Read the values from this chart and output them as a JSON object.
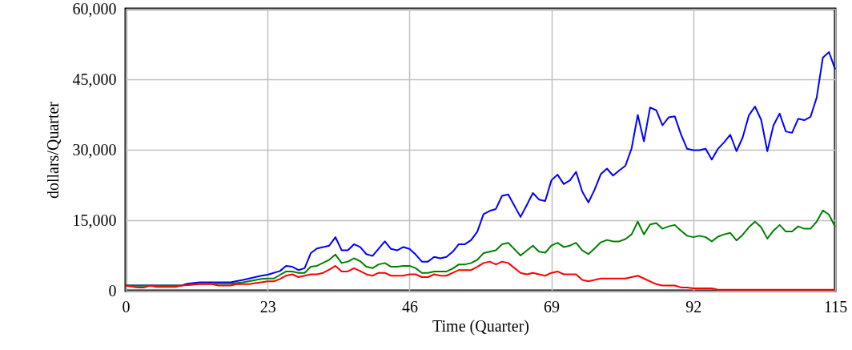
{
  "chart_data": {
    "type": "line",
    "xlabel": "Time (Quarter)",
    "ylabel": "dollars/Quarter",
    "xlim": [
      0,
      115
    ],
    "xticks": [
      0,
      23,
      46,
      69,
      92,
      115
    ],
    "ylim": [
      0,
      60000
    ],
    "yticks": [
      0,
      {
        "value": 15000,
        "label": "15,000"
      },
      {
        "value": 30000,
        "label": "30,000"
      },
      {
        "value": 45000,
        "label": "45,000"
      },
      {
        "value": 60000,
        "label": "60,000"
      }
    ],
    "grid": true,
    "series": [
      {
        "color": "#0000ff",
        "x": [
          0,
          9,
          10,
          12,
          17,
          19,
          22,
          23,
          25,
          26,
          27,
          28,
          29,
          30,
          31,
          33,
          34,
          35,
          36,
          37,
          38,
          39,
          40,
          42,
          43,
          44,
          45,
          46,
          47,
          48,
          49,
          50,
          51,
          52,
          53,
          54,
          55,
          56,
          57,
          58,
          59,
          60,
          61,
          62,
          64,
          65,
          66,
          67,
          68,
          69,
          70,
          71,
          72,
          73,
          74,
          75,
          76,
          77,
          78,
          79,
          80,
          81,
          82,
          83,
          84,
          85,
          86,
          87,
          88,
          89,
          90,
          91,
          92,
          93,
          94,
          95,
          96,
          97,
          98,
          99,
          100,
          101,
          102,
          103,
          104,
          105,
          106,
          107,
          108,
          109,
          110,
          111,
          112,
          113,
          114,
          115
        ],
        "values": [
          1100,
          1100,
          1500,
          1800,
          1800,
          2300,
          3200,
          3400,
          4200,
          5300,
          5100,
          4400,
          4800,
          8000,
          9000,
          9600,
          11400,
          8600,
          8600,
          9900,
          9300,
          7800,
          7400,
          10500,
          8900,
          8600,
          9300,
          8900,
          7700,
          6200,
          6200,
          7200,
          6900,
          7200,
          8300,
          9900,
          9900,
          10800,
          12600,
          16300,
          17000,
          17400,
          20200,
          20500,
          15700,
          18200,
          20800,
          19400,
          19100,
          23500,
          24700,
          22700,
          23500,
          25300,
          21100,
          18800,
          21500,
          24800,
          26000,
          24500,
          25600,
          26600,
          30300,
          37400,
          31800,
          39000,
          38400,
          35200,
          36900,
          37100,
          33300,
          30200,
          29900,
          29900,
          30200,
          27900,
          30200,
          31600,
          33200,
          29700,
          32600,
          37300,
          39200,
          36400,
          29700,
          35200,
          37700,
          33900,
          33600,
          36600,
          36300,
          37000,
          41100,
          49600,
          50800,
          47100
        ]
      },
      {
        "color": "#008000",
        "x": [
          0,
          9,
          12,
          17,
          19,
          22,
          23,
          24,
          26,
          27,
          28,
          29,
          30,
          31,
          33,
          34,
          35,
          36,
          37,
          38,
          39,
          40,
          41,
          42,
          43,
          44,
          45,
          46,
          47,
          48,
          49,
          50,
          52,
          53,
          54,
          55,
          56,
          57,
          58,
          59,
          60,
          61,
          62,
          64,
          66,
          67,
          68,
          69,
          70,
          71,
          72,
          73,
          74,
          75,
          76,
          77,
          78,
          79,
          80,
          81,
          82,
          83,
          84,
          85,
          86,
          87,
          88,
          89,
          90,
          91,
          92,
          93,
          94,
          95,
          96,
          97,
          98,
          99,
          100,
          101,
          102,
          103,
          104,
          105,
          106,
          107,
          108,
          109,
          110,
          111,
          112,
          113,
          114,
          115
        ],
        "values": [
          1100,
          1100,
          1500,
          1500,
          1800,
          2500,
          2600,
          2600,
          4100,
          4100,
          3800,
          3800,
          5100,
          5300,
          6600,
          7700,
          5900,
          6200,
          6900,
          6300,
          5100,
          4800,
          5600,
          5900,
          5100,
          5100,
          5300,
          5300,
          4800,
          3800,
          3800,
          4100,
          4100,
          4700,
          5600,
          5600,
          5900,
          6600,
          8000,
          8300,
          8600,
          9900,
          10200,
          7500,
          9600,
          8300,
          8100,
          9600,
          10200,
          9300,
          9600,
          10200,
          8600,
          7800,
          9000,
          10300,
          10800,
          10500,
          10500,
          11000,
          12000,
          14700,
          12000,
          14100,
          14400,
          13200,
          13700,
          14000,
          12800,
          11700,
          11400,
          11700,
          11400,
          10500,
          11500,
          12000,
          12300,
          10700,
          11900,
          13500,
          14700,
          13500,
          11100,
          12800,
          14000,
          12600,
          12600,
          13700,
          13200,
          13200,
          14700,
          17100,
          16200,
          13600
        ]
      },
      {
        "color": "#ff0000",
        "x": [
          0,
          2,
          3,
          4,
          5,
          8,
          9,
          12,
          14,
          15,
          17,
          18,
          20,
          21,
          22,
          23,
          24,
          25,
          26,
          27,
          28,
          29,
          30,
          31,
          32,
          33,
          34,
          35,
          36,
          37,
          38,
          39,
          40,
          41,
          42,
          43,
          45,
          46,
          47,
          48,
          49,
          50,
          51,
          52,
          53,
          54,
          56,
          57,
          58,
          59,
          60,
          61,
          62,
          64,
          65,
          66,
          68,
          69,
          70,
          71,
          73,
          74,
          75,
          77,
          81,
          83,
          84,
          86,
          87,
          89,
          90,
          91,
          92,
          95,
          96,
          115
        ],
        "values": [
          1100,
          700,
          700,
          1100,
          800,
          800,
          1100,
          1400,
          1400,
          1100,
          1100,
          1400,
          1400,
          1600,
          1800,
          2000,
          2000,
          2500,
          3200,
          3500,
          2900,
          3200,
          3500,
          3500,
          3800,
          4500,
          5300,
          4100,
          4100,
          4800,
          4200,
          3500,
          3200,
          3800,
          3800,
          3200,
          3200,
          3500,
          3500,
          2900,
          2900,
          3500,
          3200,
          3200,
          3800,
          4400,
          4400,
          5100,
          5900,
          6200,
          5600,
          6200,
          5900,
          3800,
          3500,
          3800,
          3200,
          3800,
          4100,
          3500,
          3500,
          2300,
          2000,
          2600,
          2600,
          3200,
          2600,
          1400,
          1100,
          1100,
          700,
          700,
          500,
          500,
          200,
          200
        ]
      }
    ]
  }
}
